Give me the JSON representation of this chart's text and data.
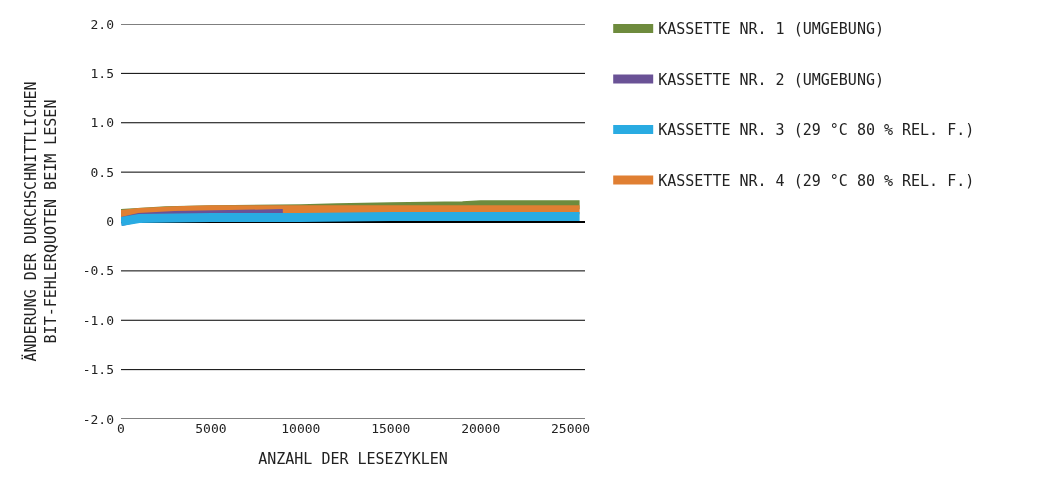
{
  "chart_data": {
    "type": "line",
    "xlabel": "ANZAHL DER LESEZYKLEN",
    "ylabel": "ÄNDERUNG DER DURCHSCHNITTLICHEN\nBIT-FEHLERQUOTEN BEIM LESEN",
    "xlim": [
      0,
      25800
    ],
    "xticks": [
      0,
      5000,
      10000,
      15000,
      20000,
      25000
    ],
    "ylim": [
      -2,
      2
    ],
    "yticks": [
      {
        "value": -2,
        "label": "-2.0"
      },
      {
        "value": -1.5,
        "label": "-1.5"
      },
      {
        "value": -1,
        "label": "-1.0"
      },
      {
        "value": -0.5,
        "label": "-0.5"
      },
      0,
      {
        "value": 0.5,
        "label": "0.5"
      },
      {
        "value": 1,
        "label": "1.0"
      },
      {
        "value": 1.5,
        "label": "1.5"
      },
      {
        "value": 2,
        "label": "2.0"
      }
    ],
    "grid": "y",
    "legend": "right",
    "line_style": "solid",
    "marker": "none",
    "series": [
      {
        "name": "KASSETTE NR. 1 (UMGEBUNG)",
        "color": "#6e8b3d",
        "x": [
          0,
          2500,
          5000,
          10000,
          12000,
          15000,
          19000,
          20000,
          25500
        ],
        "values": [
          0.08,
          0.11,
          0.12,
          0.13,
          0.14,
          0.15,
          0.16,
          0.17,
          0.17
        ]
      },
      {
        "name": "KASSETTE NR. 2 (UMGEBUNG)",
        "color": "#6a5296",
        "x": [
          0,
          1000,
          3000,
          6000,
          9000
        ],
        "values": [
          0.0,
          0.04,
          0.06,
          0.07,
          0.08
        ]
      },
      {
        "name": "KASSETTE NR. 3 (29 °C 80 % REL. F.)",
        "color": "#29abe2",
        "x": [
          0,
          1000,
          5000,
          10000,
          15000,
          20000,
          25500
        ],
        "values": [
          0.0,
          0.03,
          0.04,
          0.04,
          0.05,
          0.05,
          0.05
        ]
      },
      {
        "name": "KASSETTE NR. 4 (29 °C 80 % REL. F.)",
        "color": "#e07f32",
        "x": [
          0,
          1000,
          3000,
          5000,
          10000,
          15000,
          20000,
          25500
        ],
        "values": [
          0.07,
          0.09,
          0.11,
          0.12,
          0.12,
          0.12,
          0.12,
          0.12
        ]
      }
    ]
  }
}
